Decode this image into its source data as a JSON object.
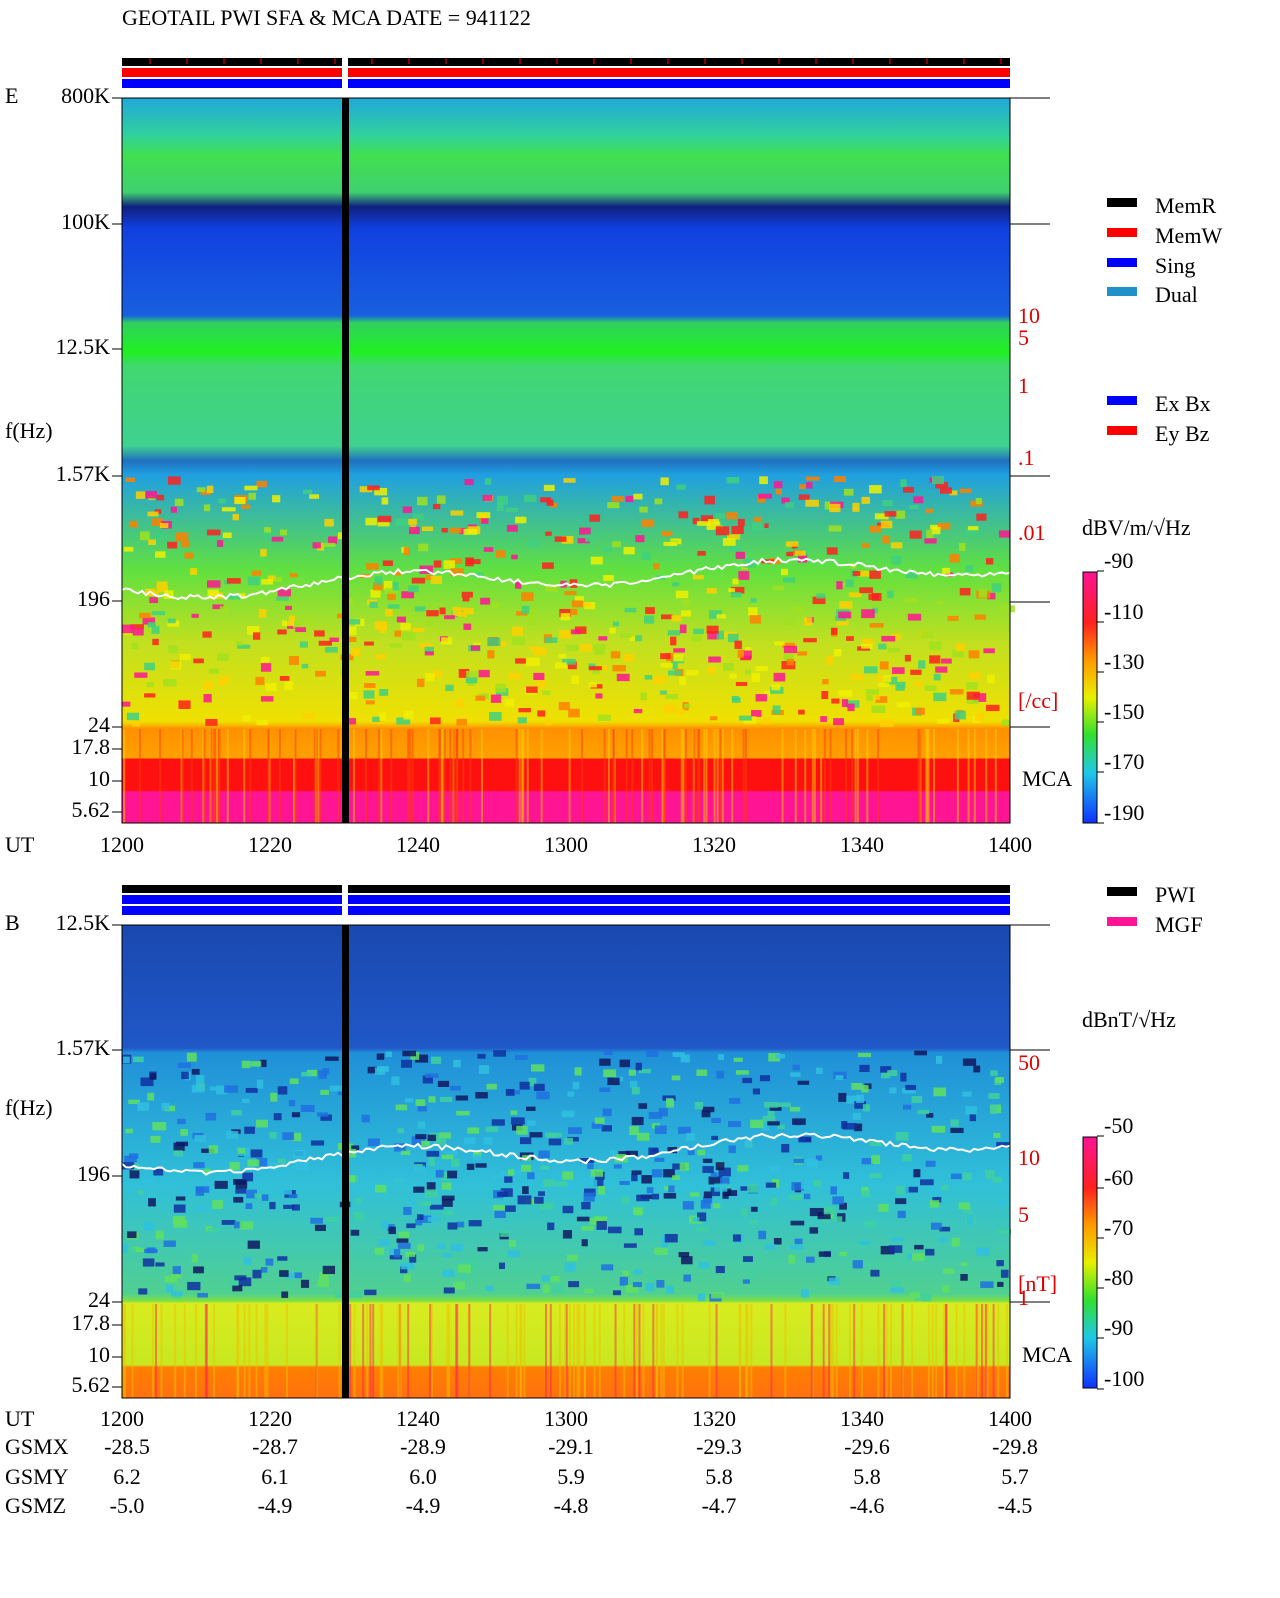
{
  "header": {
    "title": "GEOTAIL   PWI SFA & MCA   DATE = 941122"
  },
  "panels": [
    {
      "label": "E",
      "y_axis_label": "f(Hz)",
      "freq_labels": [
        "800K",
        "100K",
        "12.5K",
        "1.57K",
        "196",
        "24",
        "17.8",
        "10",
        "5.62"
      ],
      "side_labels": [
        "10",
        "5",
        "1",
        ".1",
        ".01",
        "[/cc]"
      ],
      "mca_label": "MCA",
      "unit": "dBV/m/√Hz",
      "colorbar_labels": [
        "-90",
        "-110",
        "-130",
        "-150",
        "-170",
        "-190"
      ],
      "time_label": "UT",
      "time_labels": [
        "1200",
        "1220",
        "1240",
        "1300",
        "1320",
        "1340",
        "1400"
      ]
    },
    {
      "label": "B",
      "y_axis_label": "f(Hz)",
      "freq_labels": [
        "12.5K",
        "1.57K",
        "196",
        "24",
        "17.8",
        "10",
        "5.62"
      ],
      "side_labels": [
        "50",
        "10",
        "5",
        "1",
        "[nT]"
      ],
      "mca_label": "MCA",
      "unit": "dBnT/√Hz",
      "colorbar_labels": [
        "-50",
        "-60",
        "-70",
        "-80",
        "-90",
        "-100"
      ],
      "time_label": "UT",
      "time_labels": [
        "1200",
        "1220",
        "1240",
        "1300",
        "1320",
        "1340",
        "1400"
      ]
    }
  ],
  "legends": {
    "mode": [
      "MemR",
      "MemW",
      "Sing",
      "Dual"
    ],
    "components": [
      "Ex Bx",
      "Ey Bz"
    ],
    "source": [
      "PWI",
      "MGF"
    ]
  },
  "orbit": {
    "rows": [
      {
        "label": "GSMX",
        "values": [
          "-28.5",
          "-28.7",
          "-28.9",
          "-29.1",
          "-29.3",
          "-29.6",
          "-29.8"
        ]
      },
      {
        "label": "GSMY",
        "values": [
          "6.2",
          "6.1",
          "6.0",
          "5.9",
          "5.8",
          "5.8",
          "5.7"
        ]
      },
      {
        "label": "GSMZ",
        "values": [
          "-5.0",
          "-4.9",
          "-4.9",
          "-4.8",
          "-4.7",
          "-4.6",
          "-4.5"
        ]
      }
    ]
  }
}
